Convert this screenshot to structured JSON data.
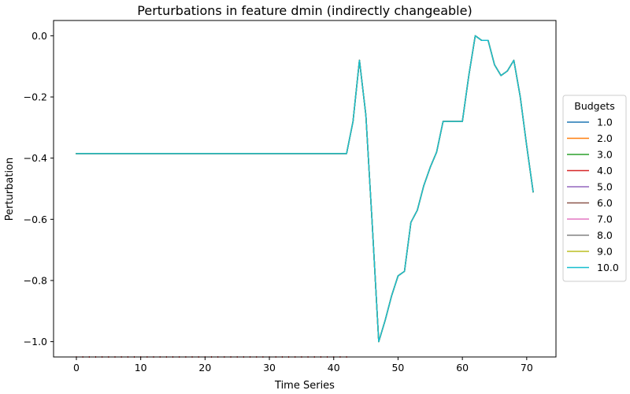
{
  "chart_data": {
    "type": "line",
    "title": "Perturbations in feature dmin (indirectly changeable)",
    "xlabel": "Time Series",
    "ylabel": "Perturbation",
    "xlim": [
      -3.55,
      74.55
    ],
    "ylim": [
      -1.05,
      0.05
    ],
    "xticks": [
      0,
      10,
      20,
      30,
      40,
      50,
      60,
      70
    ],
    "yticks": [
      0.0,
      -0.2,
      -0.4,
      -0.6,
      -0.8,
      -1.0
    ],
    "ytick_labels": [
      "0.0",
      "−0.2",
      "−0.4",
      "−0.6",
      "−0.8",
      "−1.0"
    ],
    "grid": false,
    "legend": {
      "title": "Budgets",
      "placement": "center-right, outside plot area"
    },
    "x": [
      0,
      1,
      2,
      3,
      4,
      5,
      6,
      7,
      8,
      9,
      10,
      11,
      12,
      13,
      14,
      15,
      16,
      17,
      18,
      19,
      20,
      21,
      22,
      23,
      24,
      25,
      26,
      27,
      28,
      29,
      30,
      31,
      32,
      33,
      34,
      35,
      36,
      37,
      38,
      39,
      40,
      41,
      42,
      43,
      44,
      45,
      46,
      47,
      48,
      49,
      50,
      51,
      52,
      53,
      54,
      55,
      56,
      57,
      58,
      59,
      60,
      61,
      62,
      63,
      64,
      65,
      66,
      67,
      68,
      69,
      70,
      71
    ],
    "series": [
      {
        "name": "1.0",
        "color": "#1f77b4",
        "values": [
          -0.385,
          -0.385,
          -0.385,
          -0.385,
          -0.385,
          -0.385,
          -0.385,
          -0.385,
          -0.385,
          -0.385,
          -0.385,
          -0.385,
          -0.385,
          -0.385,
          -0.385,
          -0.385,
          -0.385,
          -0.385,
          -0.385,
          -0.385,
          -0.385,
          -0.385,
          -0.385,
          -0.385,
          -0.385,
          -0.385,
          -0.385,
          -0.385,
          -0.385,
          -0.385,
          -0.385,
          -0.385,
          -0.385,
          -0.385,
          -0.385,
          -0.385,
          -0.385,
          -0.385,
          -0.385,
          -0.385,
          -0.385,
          -0.385,
          -0.385,
          -0.28,
          -0.08,
          -0.26,
          -0.62,
          -1.0,
          -0.93,
          -0.85,
          -0.785,
          -0.77,
          -0.61,
          -0.57,
          -0.49,
          -0.43,
          -0.38,
          -0.28,
          -0.28,
          -0.28,
          -0.28,
          -0.13,
          0.0,
          -0.015,
          -0.015,
          -0.095,
          -0.13,
          -0.115,
          -0.08,
          -0.2,
          -0.36,
          -0.51
        ]
      },
      {
        "name": "2.0",
        "color": "#ff7f0e",
        "values": [
          -0.385,
          -0.385,
          -0.385,
          -0.385,
          -0.385,
          -0.385,
          -0.385,
          -0.385,
          -0.385,
          -0.385,
          -0.385,
          -0.385,
          -0.385,
          -0.385,
          -0.385,
          -0.385,
          -0.385,
          -0.385,
          -0.385,
          -0.385,
          -0.385,
          -0.385,
          -0.385,
          -0.385,
          -0.385,
          -0.385,
          -0.385,
          -0.385,
          -0.385,
          -0.385,
          -0.385,
          -0.385,
          -0.385,
          -0.385,
          -0.385,
          -0.385,
          -0.385,
          -0.385,
          -0.385,
          -0.385,
          -0.385,
          -0.385,
          -0.385,
          -0.28,
          -0.08,
          -0.26,
          -0.62,
          -1.0,
          -0.93,
          -0.85,
          -0.785,
          -0.77,
          -0.61,
          -0.57,
          -0.49,
          -0.43,
          -0.38,
          -0.28,
          -0.28,
          -0.28,
          -0.28,
          -0.13,
          0.0,
          -0.015,
          -0.015,
          -0.095,
          -0.13,
          -0.115,
          -0.08,
          -0.2,
          -0.36,
          -0.51
        ]
      },
      {
        "name": "3.0",
        "color": "#2ca02c",
        "values": [
          -0.385,
          -0.385,
          -0.385,
          -0.385,
          -0.385,
          -0.385,
          -0.385,
          -0.385,
          -0.385,
          -0.385,
          -0.385,
          -0.385,
          -0.385,
          -0.385,
          -0.385,
          -0.385,
          -0.385,
          -0.385,
          -0.385,
          -0.385,
          -0.385,
          -0.385,
          -0.385,
          -0.385,
          -0.385,
          -0.385,
          -0.385,
          -0.385,
          -0.385,
          -0.385,
          -0.385,
          -0.385,
          -0.385,
          -0.385,
          -0.385,
          -0.385,
          -0.385,
          -0.385,
          -0.385,
          -0.385,
          -0.385,
          -0.385,
          -0.385,
          -0.28,
          -0.08,
          -0.26,
          -0.62,
          -1.0,
          -0.93,
          -0.85,
          -0.785,
          -0.77,
          -0.61,
          -0.57,
          -0.49,
          -0.43,
          -0.38,
          -0.28,
          -0.28,
          -0.28,
          -0.28,
          -0.13,
          0.0,
          -0.015,
          -0.015,
          -0.095,
          -0.13,
          -0.115,
          -0.08,
          -0.2,
          -0.36,
          -0.51
        ]
      },
      {
        "name": "4.0",
        "color": "#d62728",
        "values": [
          -0.385,
          -0.385,
          -0.385,
          -0.385,
          -0.385,
          -0.385,
          -0.385,
          -0.385,
          -0.385,
          -0.385,
          -0.385,
          -0.385,
          -0.385,
          -0.385,
          -0.385,
          -0.385,
          -0.385,
          -0.385,
          -0.385,
          -0.385,
          -0.385,
          -0.385,
          -0.385,
          -0.385,
          -0.385,
          -0.385,
          -0.385,
          -0.385,
          -0.385,
          -0.385,
          -0.385,
          -0.385,
          -0.385,
          -0.385,
          -0.385,
          -0.385,
          -0.385,
          -0.385,
          -0.385,
          -0.385,
          -0.385,
          -0.385,
          -0.385,
          -0.28,
          -0.08,
          -0.26,
          -0.62,
          -1.0,
          -0.93,
          -0.85,
          -0.785,
          -0.77,
          -0.61,
          -0.57,
          -0.49,
          -0.43,
          -0.38,
          -0.28,
          -0.28,
          -0.28,
          -0.28,
          -0.13,
          0.0,
          -0.015,
          -0.015,
          -0.095,
          -0.13,
          -0.115,
          -0.08,
          -0.2,
          -0.36,
          -0.51
        ]
      },
      {
        "name": "5.0",
        "color": "#9467bd",
        "values": [
          -0.385,
          -0.385,
          -0.385,
          -0.385,
          -0.385,
          -0.385,
          -0.385,
          -0.385,
          -0.385,
          -0.385,
          -0.385,
          -0.385,
          -0.385,
          -0.385,
          -0.385,
          -0.385,
          -0.385,
          -0.385,
          -0.385,
          -0.385,
          -0.385,
          -0.385,
          -0.385,
          -0.385,
          -0.385,
          -0.385,
          -0.385,
          -0.385,
          -0.385,
          -0.385,
          -0.385,
          -0.385,
          -0.385,
          -0.385,
          -0.385,
          -0.385,
          -0.385,
          -0.385,
          -0.385,
          -0.385,
          -0.385,
          -0.385,
          -0.385,
          -0.28,
          -0.08,
          -0.26,
          -0.62,
          -1.0,
          -0.93,
          -0.85,
          -0.785,
          -0.77,
          -0.61,
          -0.57,
          -0.49,
          -0.43,
          -0.38,
          -0.28,
          -0.28,
          -0.28,
          -0.28,
          -0.13,
          0.0,
          -0.015,
          -0.015,
          -0.095,
          -0.13,
          -0.115,
          -0.08,
          -0.2,
          -0.36,
          -0.51
        ]
      },
      {
        "name": "6.0",
        "color": "#8c564b",
        "values": [
          -0.385,
          -0.385,
          -0.385,
          -0.385,
          -0.385,
          -0.385,
          -0.385,
          -0.385,
          -0.385,
          -0.385,
          -0.385,
          -0.385,
          -0.385,
          -0.385,
          -0.385,
          -0.385,
          -0.385,
          -0.385,
          -0.385,
          -0.385,
          -0.385,
          -0.385,
          -0.385,
          -0.385,
          -0.385,
          -0.385,
          -0.385,
          -0.385,
          -0.385,
          -0.385,
          -0.385,
          -0.385,
          -0.385,
          -0.385,
          -0.385,
          -0.385,
          -0.385,
          -0.385,
          -0.385,
          -0.385,
          -0.385,
          -0.385,
          -0.385,
          -0.28,
          -0.08,
          -0.26,
          -0.62,
          -1.0,
          -0.93,
          -0.85,
          -0.785,
          -0.77,
          -0.61,
          -0.57,
          -0.49,
          -0.43,
          -0.38,
          -0.28,
          -0.28,
          -0.28,
          -0.28,
          -0.13,
          0.0,
          -0.015,
          -0.015,
          -0.095,
          -0.13,
          -0.115,
          -0.08,
          -0.2,
          -0.36,
          -0.51
        ]
      },
      {
        "name": "7.0",
        "color": "#e377c2",
        "values": [
          -0.385,
          -0.385,
          -0.385,
          -0.385,
          -0.385,
          -0.385,
          -0.385,
          -0.385,
          -0.385,
          -0.385,
          -0.385,
          -0.385,
          -0.385,
          -0.385,
          -0.385,
          -0.385,
          -0.385,
          -0.385,
          -0.385,
          -0.385,
          -0.385,
          -0.385,
          -0.385,
          -0.385,
          -0.385,
          -0.385,
          -0.385,
          -0.385,
          -0.385,
          -0.385,
          -0.385,
          -0.385,
          -0.385,
          -0.385,
          -0.385,
          -0.385,
          -0.385,
          -0.385,
          -0.385,
          -0.385,
          -0.385,
          -0.385,
          -0.385,
          -0.28,
          -0.08,
          -0.26,
          -0.62,
          -1.0,
          -0.93,
          -0.85,
          -0.785,
          -0.77,
          -0.61,
          -0.57,
          -0.49,
          -0.43,
          -0.38,
          -0.28,
          -0.28,
          -0.28,
          -0.28,
          -0.13,
          0.0,
          -0.015,
          -0.015,
          -0.095,
          -0.13,
          -0.115,
          -0.08,
          -0.2,
          -0.36,
          -0.51
        ]
      },
      {
        "name": "8.0",
        "color": "#7f7f7f",
        "values": [
          -0.385,
          -0.385,
          -0.385,
          -0.385,
          -0.385,
          -0.385,
          -0.385,
          -0.385,
          -0.385,
          -0.385,
          -0.385,
          -0.385,
          -0.385,
          -0.385,
          -0.385,
          -0.385,
          -0.385,
          -0.385,
          -0.385,
          -0.385,
          -0.385,
          -0.385,
          -0.385,
          -0.385,
          -0.385,
          -0.385,
          -0.385,
          -0.385,
          -0.385,
          -0.385,
          -0.385,
          -0.385,
          -0.385,
          -0.385,
          -0.385,
          -0.385,
          -0.385,
          -0.385,
          -0.385,
          -0.385,
          -0.385,
          -0.385,
          -0.385,
          -0.28,
          -0.08,
          -0.26,
          -0.62,
          -1.0,
          -0.93,
          -0.85,
          -0.785,
          -0.77,
          -0.61,
          -0.57,
          -0.49,
          -0.43,
          -0.38,
          -0.28,
          -0.28,
          -0.28,
          -0.28,
          -0.13,
          0.0,
          -0.015,
          -0.015,
          -0.095,
          -0.13,
          -0.115,
          -0.08,
          -0.2,
          -0.36,
          -0.51
        ]
      },
      {
        "name": "9.0",
        "color": "#bcbd22",
        "values": [
          -0.385,
          -0.385,
          -0.385,
          -0.385,
          -0.385,
          -0.385,
          -0.385,
          -0.385,
          -0.385,
          -0.385,
          -0.385,
          -0.385,
          -0.385,
          -0.385,
          -0.385,
          -0.385,
          -0.385,
          -0.385,
          -0.385,
          -0.385,
          -0.385,
          -0.385,
          -0.385,
          -0.385,
          -0.385,
          -0.385,
          -0.385,
          -0.385,
          -0.385,
          -0.385,
          -0.385,
          -0.385,
          -0.385,
          -0.385,
          -0.385,
          -0.385,
          -0.385,
          -0.385,
          -0.385,
          -0.385,
          -0.385,
          -0.385,
          -0.385,
          -0.28,
          -0.08,
          -0.26,
          -0.62,
          -1.0,
          -0.93,
          -0.85,
          -0.785,
          -0.77,
          -0.61,
          -0.57,
          -0.49,
          -0.43,
          -0.38,
          -0.28,
          -0.28,
          -0.28,
          -0.28,
          -0.13,
          0.0,
          -0.015,
          -0.015,
          -0.095,
          -0.13,
          -0.115,
          -0.08,
          -0.2,
          -0.36,
          -0.51
        ]
      },
      {
        "name": "10.0",
        "color": "#17becf",
        "values": [
          -0.385,
          -0.385,
          -0.385,
          -0.385,
          -0.385,
          -0.385,
          -0.385,
          -0.385,
          -0.385,
          -0.385,
          -0.385,
          -0.385,
          -0.385,
          -0.385,
          -0.385,
          -0.385,
          -0.385,
          -0.385,
          -0.385,
          -0.385,
          -0.385,
          -0.385,
          -0.385,
          -0.385,
          -0.385,
          -0.385,
          -0.385,
          -0.385,
          -0.385,
          -0.385,
          -0.385,
          -0.385,
          -0.385,
          -0.385,
          -0.385,
          -0.385,
          -0.385,
          -0.385,
          -0.385,
          -0.385,
          -0.385,
          -0.385,
          -0.385,
          -0.28,
          -0.08,
          -0.26,
          -0.62,
          -1.0,
          -0.93,
          -0.85,
          -0.785,
          -0.77,
          -0.61,
          -0.57,
          -0.49,
          -0.43,
          -0.38,
          -0.28,
          -0.28,
          -0.28,
          -0.28,
          -0.13,
          0.0,
          -0.015,
          -0.015,
          -0.095,
          -0.13,
          -0.115,
          -0.08,
          -0.2,
          -0.36,
          -0.51
        ]
      }
    ],
    "baseline_markers": {
      "color": "#d62728",
      "y": -1.05,
      "x_from": 0,
      "x_to": 42
    }
  }
}
